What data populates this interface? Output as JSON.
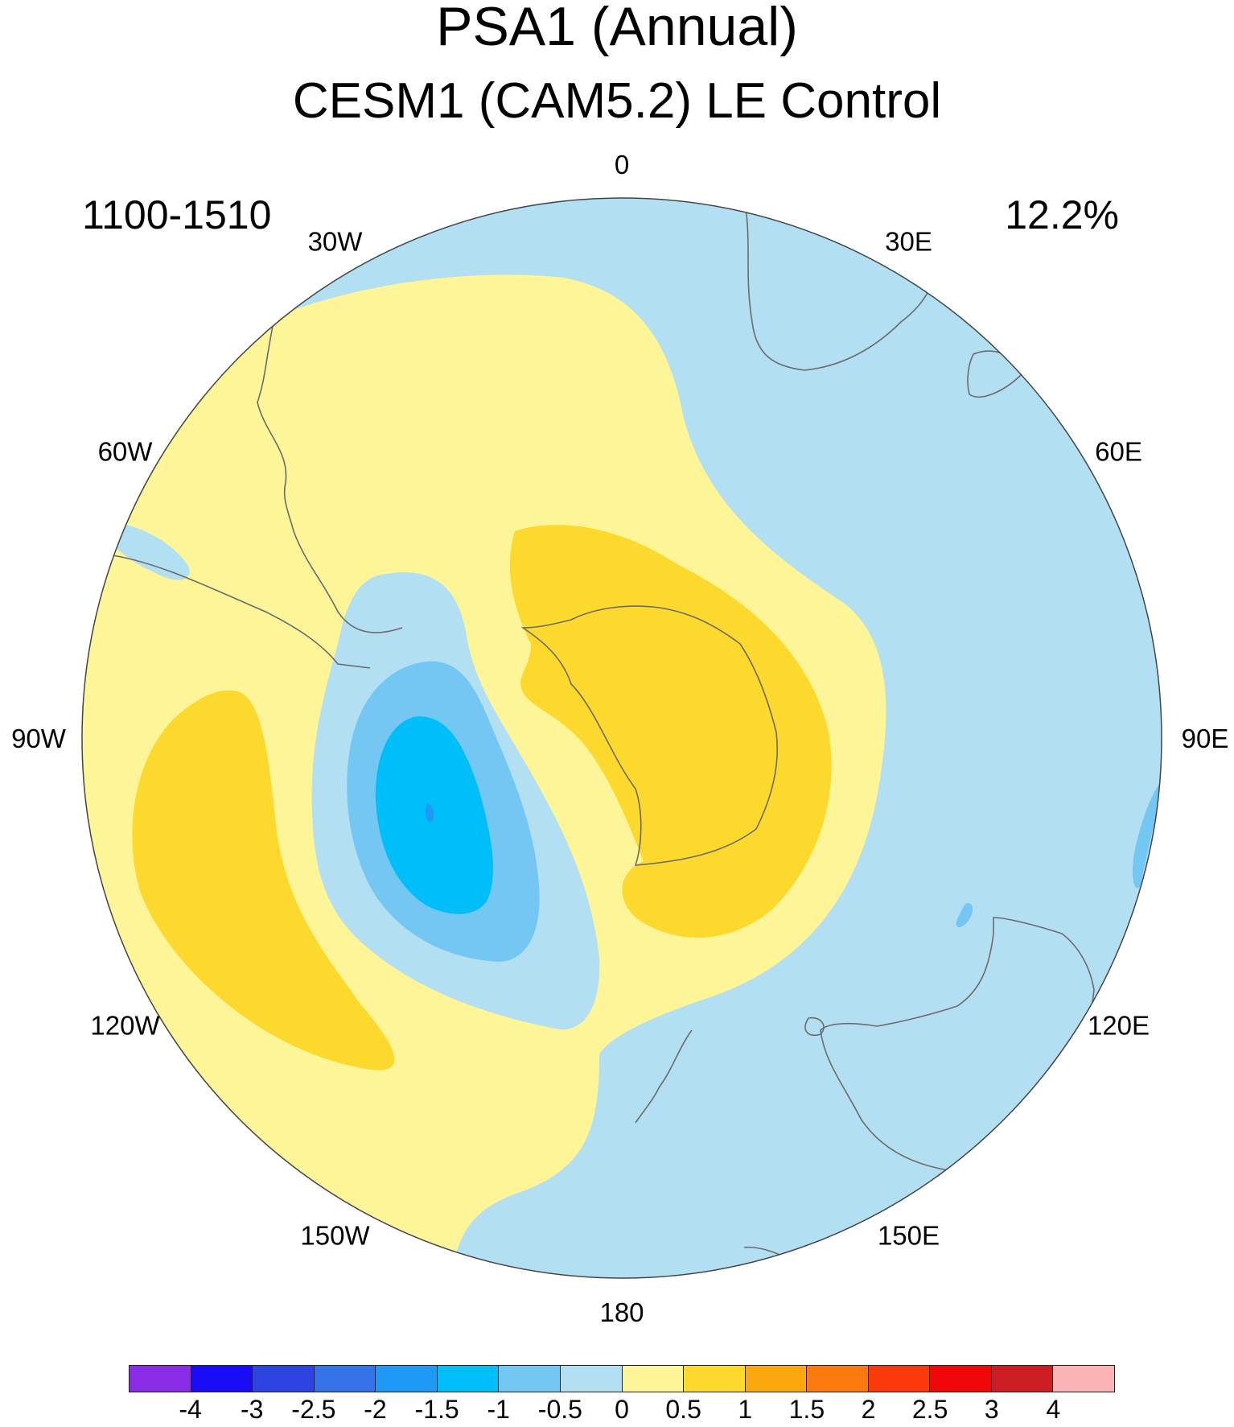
{
  "title": "PSA1 (Annual)",
  "subtitle": "CESM1 (CAM5.2) LE Control",
  "period": "1100-1510",
  "variance_explained": "12.2%",
  "longitude_labels": [
    "0",
    "30E",
    "60E",
    "90E",
    "120E",
    "150E",
    "180",
    "150W",
    "120W",
    "90W",
    "60W",
    "30W"
  ],
  "colorbar": {
    "labels": [
      "-4",
      "-3",
      "-2.5",
      "-2",
      "-1.5",
      "-1",
      "-0.5",
      "0",
      "0.5",
      "1",
      "1.5",
      "2",
      "2.5",
      "3",
      "4"
    ],
    "colors": [
      "#8a2be6",
      "#1a0cf5",
      "#2e44e0",
      "#3574e8",
      "#1e99f5",
      "#00bff8",
      "#74c7f3",
      "#b3dff2",
      "#fdf598",
      "#fdd92e",
      "#fba80c",
      "#fb7a0b",
      "#fb3a0c",
      "#ef0808",
      "#cc1e22",
      "#fbb4b6"
    ]
  },
  "colors": {
    "positive_weak": "#fdf598",
    "positive_mid": "#fdd92e",
    "negative_weak": "#b3dff2",
    "negative_mid": "#74c7f3",
    "negative_strong": "#00bff8",
    "negative_core": "#1e99f5",
    "coastline": "#6b6b6b"
  }
}
